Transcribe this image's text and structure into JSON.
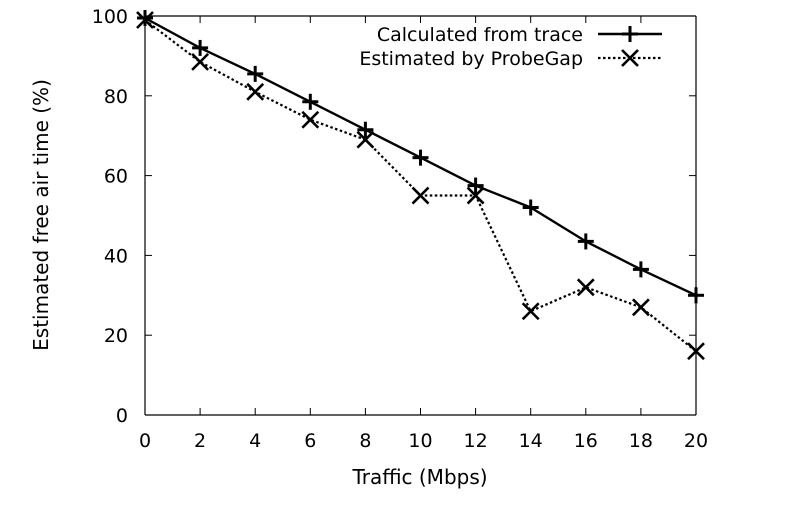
{
  "chart_data": {
    "type": "line",
    "xlabel": "Traffic (Mbps)",
    "ylabel": "Estimated free air time (%)",
    "xlim": [
      0,
      20
    ],
    "ylim": [
      0,
      100
    ],
    "x_ticks": [
      "0",
      "2",
      "4",
      "6",
      "8",
      "10",
      "12",
      "14",
      "16",
      "18",
      "20"
    ],
    "y_ticks": [
      "0",
      "20",
      "40",
      "60",
      "80",
      "100"
    ],
    "grid": false,
    "legend_position": "top-right",
    "x": [
      0,
      2,
      4,
      6,
      8,
      10,
      12,
      14,
      16,
      18,
      20
    ],
    "series": [
      {
        "name": "Calculated from trace",
        "marker": "plus",
        "line_style": "solid",
        "color": "#000000",
        "values": [
          99.5,
          92,
          85.5,
          78.5,
          71.5,
          64.5,
          57.5,
          52,
          43.5,
          36.5,
          30
        ]
      },
      {
        "name": "Estimated by ProbeGap",
        "marker": "cross",
        "line_style": "dotted",
        "color": "#000000",
        "values": [
          99,
          88.5,
          81,
          74,
          69,
          55,
          55,
          26,
          32,
          27,
          16
        ]
      }
    ]
  }
}
